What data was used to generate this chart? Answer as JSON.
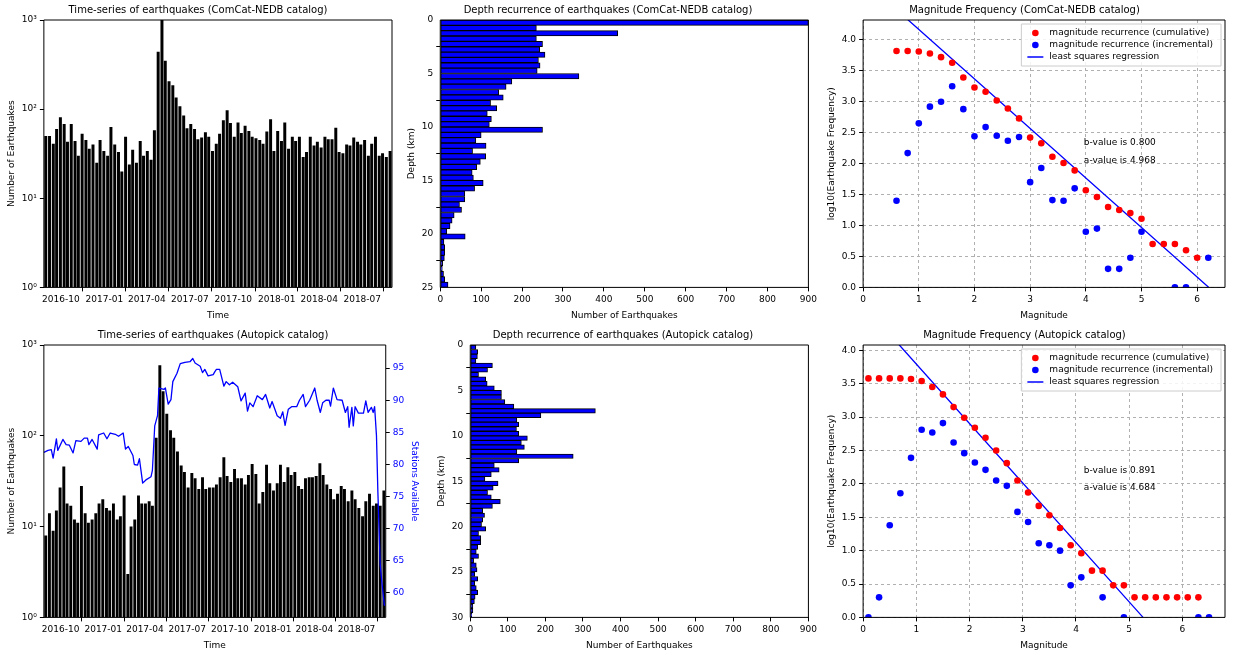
{
  "chart_data": [
    {
      "type": "bar",
      "title": "Time-series of earthquakes (ComCat-NEDB catalog)",
      "xlabel": "Time",
      "ylabel": "Number of Earthquakes",
      "log": "y",
      "color": "#000000",
      "x": [
        "2016-08-30",
        "2016-09-07",
        "2016-09-15",
        "2016-09-22",
        "2016-09-30",
        "2016-10-08",
        "2016-10-15",
        "2016-10-23",
        "2016-10-31",
        "2016-11-07",
        "2016-11-15",
        "2016-11-23",
        "2016-11-30",
        "2016-12-08",
        "2016-12-16",
        "2016-12-23",
        "2016-12-31",
        "2017-01-08",
        "2017-01-15",
        "2017-01-23",
        "2017-01-31",
        "2017-02-07",
        "2017-02-15",
        "2017-02-23",
        "2017-03-02",
        "2017-03-10",
        "2017-03-18",
        "2017-03-25",
        "2017-04-02",
        "2017-04-10",
        "2017-04-17",
        "2017-04-25",
        "2017-05-03",
        "2017-05-10",
        "2017-05-18",
        "2017-05-26",
        "2017-06-02",
        "2017-06-10",
        "2017-06-18",
        "2017-06-25",
        "2017-07-03",
        "2017-07-11",
        "2017-07-18",
        "2017-07-26",
        "2017-08-03",
        "2017-08-10",
        "2017-08-18",
        "2017-08-26",
        "2017-09-02",
        "2017-09-10",
        "2017-09-18",
        "2017-09-25",
        "2017-10-03",
        "2017-10-11",
        "2017-10-18",
        "2017-10-26",
        "2017-11-03",
        "2017-11-10",
        "2017-11-18",
        "2017-11-26",
        "2017-12-03",
        "2017-12-11",
        "2017-12-19",
        "2017-12-26",
        "2018-01-03",
        "2018-01-11",
        "2018-01-18",
        "2018-01-26",
        "2018-02-03",
        "2018-02-10",
        "2018-02-18",
        "2018-02-26",
        "2018-03-05",
        "2018-03-13",
        "2018-03-21",
        "2018-03-28",
        "2018-04-05",
        "2018-04-13",
        "2018-04-20",
        "2018-04-28",
        "2018-05-06",
        "2018-05-13",
        "2018-05-21",
        "2018-05-29",
        "2018-06-05",
        "2018-06-13",
        "2018-06-21",
        "2018-06-28",
        "2018-07-06",
        "2018-07-14",
        "2018-07-21",
        "2018-07-29",
        "2018-08-06",
        "2018-08-13",
        "2018-08-21",
        "2018-08-29"
      ],
      "values": [
        50,
        50,
        41,
        60,
        81,
        68,
        43,
        68,
        44,
        30,
        53,
        45,
        36,
        40,
        25,
        45,
        34,
        30,
        63,
        40,
        33,
        20,
        49,
        24,
        35,
        25,
        44,
        30,
        34,
        27,
        58,
        440,
        1000,
        350,
        205,
        185,
        135,
        108,
        85,
        61,
        68,
        60,
        46,
        48,
        55,
        49,
        34,
        41,
        53,
        75,
        97,
        70,
        49,
        71,
        54,
        65,
        57,
        49,
        47,
        45,
        41,
        56,
        77,
        34,
        57,
        44,
        71,
        36,
        49,
        44,
        49,
        29,
        33,
        49,
        39,
        43,
        37,
        49,
        46,
        46,
        62,
        33,
        32,
        40,
        39,
        48,
        43,
        40,
        45,
        30,
        41,
        49,
        30,
        32,
        29,
        34
      ],
      "xlim": [
        "2016-08-26",
        "2018-09-02"
      ],
      "xticks": [
        "2016-10",
        "2017-01",
        "2017-04",
        "2017-07",
        "2017-10",
        "2018-01",
        "2018-04",
        "2018-07"
      ],
      "ylim": [
        1,
        1000
      ],
      "yticks": [
        {
          "value": 1,
          "label": "10⁰"
        },
        {
          "value": 10,
          "label": "10¹"
        },
        {
          "value": 100,
          "label": "10²"
        },
        {
          "value": 1000,
          "label": "10³"
        }
      ]
    },
    {
      "type": "histogram",
      "orientation": "horizontal",
      "title": "Depth recurrence of earthquakes (ComCat-NEDB catalog)",
      "xlabel": "Number of Earthquakes",
      "ylabel": "Depth (km)",
      "color": "#0000ff",
      "bins": [
        0,
        0.5,
        1,
        1.5,
        2,
        2.5,
        3,
        3.5,
        4,
        4.5,
        5,
        5.5,
        6,
        6.5,
        7,
        7.5,
        8,
        8.5,
        9,
        9.5,
        10,
        10.5,
        11,
        11.5,
        12,
        12.5,
        13,
        13.5,
        14,
        14.5,
        15,
        15.5,
        16,
        16.5,
        17,
        17.5,
        18,
        18.5,
        19,
        19.5,
        20,
        20.5,
        21,
        21.5,
        22,
        22.5,
        23,
        23.5,
        24,
        24.5,
        25
      ],
      "values": [
        900,
        235,
        434,
        235,
        250,
        243,
        256,
        240,
        244,
        237,
        339,
        175,
        161,
        143,
        154,
        123,
        138,
        115,
        125,
        120,
        250,
        100,
        87,
        112,
        79,
        111,
        98,
        89,
        78,
        81,
        105,
        84,
        60,
        60,
        47,
        52,
        34,
        29,
        24,
        16,
        61,
        9,
        11,
        11,
        10,
        6,
        5,
        8,
        11,
        19
      ],
      "xlim": [
        0,
        900
      ],
      "xticks": [
        0,
        100,
        200,
        300,
        400,
        500,
        600,
        700,
        800,
        900
      ],
      "ylim": [
        25,
        0
      ],
      "yticks": [
        0,
        5,
        10,
        15,
        20,
        25
      ]
    },
    {
      "type": "scatter",
      "title": "Magnitude Frequency (ComCat-NEDB catalog)",
      "xlabel": "Magnitude",
      "ylabel": "log10(Earthquake Frequency)",
      "grid": true,
      "legend": "top right",
      "series": [
        {
          "name": "magnitude recurrence (cumulative)",
          "color": "#ff0000",
          "marker": "circle",
          "x": [
            0.6,
            0.8,
            1.0,
            1.2,
            1.4,
            1.6,
            1.8,
            2.0,
            2.2,
            2.4,
            2.6,
            2.8,
            3.0,
            3.2,
            3.4,
            3.6,
            3.8,
            4.0,
            4.2,
            4.4,
            4.6,
            4.8,
            5.0,
            5.2,
            5.4,
            5.6,
            5.8,
            6.0
          ],
          "values": [
            3.82,
            3.82,
            3.81,
            3.78,
            3.72,
            3.63,
            3.39,
            3.23,
            3.16,
            3.02,
            2.89,
            2.73,
            2.42,
            2.33,
            2.11,
            2.01,
            1.89,
            1.57,
            1.46,
            1.3,
            1.25,
            1.2,
            1.11,
            0.7,
            0.7,
            0.7,
            0.6,
            0.48
          ]
        },
        {
          "name": "magnitude recurrence (incremental)",
          "color": "#0000ff",
          "marker": "circle",
          "x": [
            0.6,
            0.8,
            1.0,
            1.2,
            1.4,
            1.6,
            1.8,
            2.0,
            2.2,
            2.4,
            2.6,
            2.8,
            3.0,
            3.2,
            3.4,
            3.6,
            3.8,
            4.0,
            4.2,
            4.4,
            4.6,
            4.8,
            5.0,
            5.6,
            5.8,
            6.2
          ],
          "values": [
            1.4,
            2.17,
            2.65,
            2.92,
            3.0,
            3.25,
            2.88,
            2.44,
            2.59,
            2.45,
            2.37,
            2.43,
            1.7,
            1.93,
            1.41,
            1.4,
            1.6,
            0.9,
            0.95,
            0.3,
            0.3,
            0.48,
            0.9,
            0.0,
            0.0,
            0.48
          ]
        },
        {
          "name": "least squares regression",
          "type": "line",
          "color": "#0000ff",
          "x": [
            0.81,
            6.21
          ],
          "values": [
            4.32,
            0.0
          ]
        }
      ],
      "annotations": [
        "b-value is 0.800",
        "a-value is 4.968"
      ],
      "xlim": [
        0,
        6.5
      ],
      "xticks": [
        0,
        1,
        2,
        3,
        4,
        5,
        6
      ],
      "ylim": [
        0,
        4.32
      ],
      "yticks": [
        {
          "value": 0,
          "label": "0.0"
        },
        {
          "value": 0.5,
          "label": "0.5"
        },
        {
          "value": 1,
          "label": "1.0"
        },
        {
          "value": 1.5,
          "label": "1.5"
        },
        {
          "value": 2,
          "label": "2.0"
        },
        {
          "value": 2.5,
          "label": "2.5"
        },
        {
          "value": 3,
          "label": "3.0"
        },
        {
          "value": 3.5,
          "label": "3.5"
        },
        {
          "value": 4,
          "label": "4.0"
        }
      ]
    },
    {
      "type": "bar",
      "title": "Time-series of earthquakes (Autopick catalog)",
      "xlabel": "Time",
      "ylabel": "Number of Earthquakes",
      "y2label": "Stations Available",
      "log": "y",
      "series": [
        {
          "type": "bar",
          "color": "#000000",
          "x": [
            "2016-08-30",
            "2016-09-07",
            "2016-09-15",
            "2016-09-22",
            "2016-09-30",
            "2016-10-08",
            "2016-10-15",
            "2016-10-23",
            "2016-10-31",
            "2016-11-07",
            "2016-11-15",
            "2016-11-23",
            "2016-11-30",
            "2016-12-08",
            "2016-12-16",
            "2016-12-23",
            "2016-12-31",
            "2017-01-08",
            "2017-01-15",
            "2017-01-23",
            "2017-01-31",
            "2017-02-07",
            "2017-02-15",
            "2017-02-23",
            "2017-03-02",
            "2017-03-10",
            "2017-03-18",
            "2017-03-25",
            "2017-04-02",
            "2017-04-10",
            "2017-04-17",
            "2017-04-25",
            "2017-05-03",
            "2017-05-10",
            "2017-05-18",
            "2017-05-26",
            "2017-06-02",
            "2017-06-10",
            "2017-06-18",
            "2017-06-25",
            "2017-07-03",
            "2017-07-11",
            "2017-07-18",
            "2017-07-26",
            "2017-08-03",
            "2017-08-10",
            "2017-08-18",
            "2017-08-26",
            "2017-09-02",
            "2017-09-10",
            "2017-09-18",
            "2017-09-25",
            "2017-10-03",
            "2017-10-11",
            "2017-10-18",
            "2017-10-26",
            "2017-11-03",
            "2017-11-10",
            "2017-11-18",
            "2017-11-26",
            "2017-12-03",
            "2017-12-11",
            "2017-12-19",
            "2017-12-26",
            "2018-01-03",
            "2018-01-11",
            "2018-01-18",
            "2018-01-26",
            "2018-02-03",
            "2018-02-10",
            "2018-02-18",
            "2018-02-26",
            "2018-03-05",
            "2018-03-13",
            "2018-03-21",
            "2018-03-28",
            "2018-04-05",
            "2018-04-13",
            "2018-04-20",
            "2018-04-28",
            "2018-05-06",
            "2018-05-13",
            "2018-05-21",
            "2018-05-29",
            "2018-06-05",
            "2018-06-13",
            "2018-06-21",
            "2018-06-28",
            "2018-07-06",
            "2018-07-14",
            "2018-07-21",
            "2018-07-29",
            "2018-08-06",
            "2018-08-13",
            "2018-08-21",
            "2018-08-29"
          ],
          "values": [
            8,
            14,
            9,
            15,
            27,
            46,
            18,
            17,
            12,
            11,
            28,
            14,
            11,
            12,
            14,
            18,
            20,
            16,
            15,
            18,
            12,
            13,
            22,
            3,
            10,
            12,
            22,
            18,
            18,
            19,
            17,
            95,
            600,
            310,
            175,
            115,
            95,
            67,
            47,
            40,
            27,
            39,
            34,
            26,
            35,
            26,
            27,
            27,
            29,
            35,
            58,
            36,
            31,
            43,
            34,
            34,
            29,
            37,
            49,
            38,
            18,
            24,
            48,
            30,
            25,
            30,
            48,
            31,
            45,
            37,
            40,
            28,
            26,
            34,
            35,
            35,
            36,
            50,
            37,
            29,
            26,
            20,
            23,
            28,
            26,
            19,
            25,
            20,
            16,
            13,
            19,
            23,
            17,
            18,
            17,
            25
          ]
        },
        {
          "type": "line",
          "axis": "y2",
          "color": "#0000ff",
          "x": [
            "2016-08-26",
            "2016-09-04",
            "2016-09-11",
            "2016-09-15",
            "2016-09-22",
            "2016-09-25",
            "2016-10-06",
            "2016-10-13",
            "2016-10-20",
            "2016-10-28",
            "2016-11-03",
            "2016-11-14",
            "2016-11-21",
            "2016-11-28",
            "2016-12-01",
            "2016-12-08",
            "2016-12-19",
            "2016-12-22",
            "2017-01-02",
            "2017-01-09",
            "2017-01-16",
            "2017-01-27",
            "2017-02-03",
            "2017-02-13",
            "2017-02-18",
            "2017-02-24",
            "2017-03-06",
            "2017-03-09",
            "2017-03-16",
            "2017-03-20",
            "2017-03-27",
            "2017-04-03",
            "2017-04-14",
            "2017-04-17",
            "2017-04-22",
            "2017-04-28",
            "2017-05-01",
            "2017-05-12",
            "2017-05-15",
            "2017-05-21",
            "2017-05-27",
            "2017-05-31",
            "2017-06-09",
            "2017-06-16",
            "2017-06-26",
            "2017-07-07",
            "2017-07-13",
            "2017-07-18",
            "2017-07-29",
            "2017-08-03",
            "2017-08-08",
            "2017-08-15",
            "2017-08-26",
            "2017-08-30",
            "2017-09-02",
            "2017-09-09",
            "2017-09-18",
            "2017-09-23",
            "2017-09-30",
            "2017-10-07",
            "2017-10-18",
            "2017-10-25",
            "2017-11-03",
            "2017-11-08",
            "2017-11-13",
            "2017-11-20",
            "2017-11-29",
            "2017-12-10",
            "2017-12-17",
            "2017-12-26",
            "2017-12-31",
            "2018-01-11",
            "2018-01-18",
            "2018-01-23",
            "2018-01-28",
            "2018-02-04",
            "2018-02-11",
            "2018-02-22",
            "2018-02-28",
            "2018-03-08",
            "2018-03-13",
            "2018-03-22",
            "2018-04-02",
            "2018-04-07",
            "2018-04-14",
            "2018-04-19",
            "2018-04-26",
            "2018-05-03",
            "2018-05-06",
            "2018-05-12",
            "2018-05-20",
            "2018-05-31",
            "2018-06-07",
            "2018-06-12",
            "2018-06-15",
            "2018-06-21",
            "2018-06-24",
            "2018-06-28",
            "2018-07-05",
            "2018-07-16",
            "2018-07-21",
            "2018-07-26",
            "2018-08-02",
            "2018-08-06",
            "2018-08-09",
            "2018-08-13",
            "2018-08-16",
            "2018-08-21",
            "2018-08-25",
            "2018-08-30"
          ],
          "values": [
            81.9,
            82.2,
            82.3,
            81.0,
            84.0,
            82.2,
            83.9,
            83.1,
            83.0,
            81.8,
            83.7,
            83.6,
            84.1,
            84.1,
            83.1,
            83.9,
            82.4,
            84.6,
            84.9,
            84.0,
            84.9,
            84.7,
            84.4,
            84.9,
            82.4,
            82.8,
            81.4,
            80.0,
            79.9,
            80.9,
            77.1,
            77.6,
            78.1,
            79.1,
            86.0,
            87.6,
            91.9,
            91.7,
            91.9,
            89.4,
            90.1,
            92.9,
            94.2,
            95.7,
            95.9,
            96.0,
            96.5,
            95.8,
            95.3,
            94.3,
            94.8,
            93.8,
            94.0,
            94.5,
            94.8,
            94.8,
            92.2,
            92.9,
            92.4,
            92.8,
            92.1,
            89.9,
            91.1,
            88.3,
            89.6,
            89.0,
            90.7,
            90.1,
            90.9,
            88.8,
            89.8,
            87.6,
            87.2,
            88.2,
            86.1,
            88.6,
            89.0,
            89.0,
            90.0,
            90.9,
            89.0,
            90.0,
            91.9,
            90.0,
            88.1,
            89.6,
            90.0,
            90.0,
            89.1,
            91.9,
            90.1,
            90.0,
            88.1,
            89.0,
            85.8,
            88.9,
            86.0,
            89.0,
            88.0,
            88.0,
            89.9,
            88.1,
            88.9,
            88.1,
            89.0,
            84.5,
            75.8,
            64.5,
            61.4,
            58.1
          ]
        }
      ],
      "xlim": [
        "2016-08-26",
        "2018-09-02"
      ],
      "xticks": [
        "2016-10",
        "2017-01",
        "2017-04",
        "2017-07",
        "2017-10",
        "2018-01",
        "2018-04",
        "2018-07"
      ],
      "ylim": [
        1,
        1000
      ],
      "yticks": [
        {
          "value": 1,
          "label": "10⁰"
        },
        {
          "value": 10,
          "label": "10¹"
        },
        {
          "value": 100,
          "label": "10²"
        },
        {
          "value": 1000,
          "label": "10³"
        }
      ],
      "y2lim": [
        56.2,
        98.6
      ],
      "y2ticks": [
        60,
        65,
        70,
        75,
        80,
        85,
        90,
        95
      ]
    },
    {
      "type": "histogram",
      "orientation": "horizontal",
      "title": "Depth recurrence of earthquakes (Autopick catalog)",
      "xlabel": "Number of Earthquakes",
      "ylabel": "Depth (km)",
      "color": "#0000ff",
      "bins": [
        0,
        0.5,
        1,
        1.5,
        2,
        2.5,
        3,
        3.5,
        4,
        4.5,
        5,
        5.5,
        6,
        6.5,
        7,
        7.5,
        8,
        8.5,
        9,
        9.5,
        10,
        10.5,
        11,
        11.5,
        12,
        12.5,
        13,
        13.5,
        14,
        14.5,
        15,
        15.5,
        16,
        16.5,
        17,
        17.5,
        18,
        18.5,
        19,
        19.5,
        20,
        20.5,
        21,
        21.5,
        22,
        22.5,
        23,
        23.5,
        24,
        24.5,
        25,
        25.5,
        26,
        26.5,
        27,
        27.5,
        28,
        28.5,
        29,
        29.5,
        30
      ],
      "values": [
        15,
        20,
        19,
        15,
        59,
        46,
        22,
        41,
        45,
        64,
        83,
        83,
        92,
        116,
        333,
        188,
        124,
        129,
        123,
        129,
        152,
        136,
        144,
        124,
        274,
        129,
        64,
        77,
        56,
        39,
        74,
        61,
        46,
        56,
        80,
        59,
        33,
        38,
        33,
        30,
        41,
        22,
        28,
        28,
        20,
        16,
        22,
        9,
        16,
        18,
        12,
        20,
        12,
        16,
        20,
        13,
        11,
        7,
        7,
        4
      ],
      "xlim": [
        0,
        900
      ],
      "xticks": [
        0,
        100,
        200,
        300,
        400,
        500,
        600,
        700,
        800,
        900
      ],
      "ylim": [
        30,
        0
      ],
      "yticks": [
        0,
        5,
        10,
        15,
        20,
        25,
        30
      ]
    },
    {
      "type": "scatter",
      "title": "Magnitude Frequency (Autopick catalog)",
      "xlabel": "Magnitude",
      "ylabel": "log10(Earthquake Frequency)",
      "grid": true,
      "legend": "top right",
      "series": [
        {
          "name": "magnitude recurrence (cumulative)",
          "color": "#ff0000",
          "marker": "circle",
          "x": [
            0.1,
            0.3,
            0.5,
            0.7,
            0.9,
            1.1,
            1.3,
            1.5,
            1.7,
            1.9,
            2.1,
            2.3,
            2.5,
            2.7,
            2.9,
            3.1,
            3.3,
            3.5,
            3.7,
            3.9,
            4.1,
            4.3,
            4.5,
            4.7,
            4.9,
            5.1,
            5.3,
            5.5,
            5.7,
            5.9,
            6.1,
            6.3
          ],
          "values": [
            3.58,
            3.58,
            3.58,
            3.58,
            3.57,
            3.54,
            3.45,
            3.34,
            3.15,
            2.99,
            2.84,
            2.69,
            2.5,
            2.31,
            2.05,
            1.87,
            1.67,
            1.53,
            1.34,
            1.08,
            0.96,
            0.7,
            0.7,
            0.48,
            0.48,
            0.3,
            0.3,
            0.3,
            0.3,
            0.3,
            0.3,
            0.3
          ]
        },
        {
          "name": "magnitude recurrence (incremental)",
          "color": "#0000ff",
          "marker": "circle",
          "x": [
            0.1,
            0.3,
            0.5,
            0.7,
            0.9,
            1.1,
            1.3,
            1.5,
            1.7,
            1.9,
            2.1,
            2.3,
            2.5,
            2.7,
            2.9,
            3.1,
            3.3,
            3.5,
            3.7,
            3.9,
            4.1,
            4.5,
            4.9,
            6.3,
            6.5
          ],
          "values": [
            0.0,
            0.3,
            1.38,
            1.86,
            2.39,
            2.81,
            2.77,
            2.91,
            2.62,
            2.46,
            2.32,
            2.21,
            2.05,
            1.97,
            1.58,
            1.43,
            1.11,
            1.08,
            1.0,
            0.48,
            0.6,
            0.3,
            0.0,
            0.0,
            0.0
          ]
        },
        {
          "name": "least squares regression",
          "type": "line",
          "color": "#0000ff",
          "x": [
            0.68,
            5.26
          ],
          "values": [
            4.08,
            0.0
          ]
        }
      ],
      "annotations": [
        "b-value is 0.891",
        "a-value is 4.684"
      ],
      "xlim": [
        0,
        6.8
      ],
      "xticks": [
        0,
        1,
        2,
        3,
        4,
        5,
        6
      ],
      "ylim": [
        0,
        4.08
      ],
      "yticks": [
        {
          "value": 0,
          "label": "0.0"
        },
        {
          "value": 0.5,
          "label": "0.5"
        },
        {
          "value": 1,
          "label": "1.0"
        },
        {
          "value": 1.5,
          "label": "1.5"
        },
        {
          "value": 2,
          "label": "2.0"
        },
        {
          "value": 2.5,
          "label": "2.5"
        },
        {
          "value": 3,
          "label": "3.0"
        },
        {
          "value": 3.5,
          "label": "3.5"
        },
        {
          "value": 4,
          "label": "4.0"
        }
      ]
    }
  ]
}
